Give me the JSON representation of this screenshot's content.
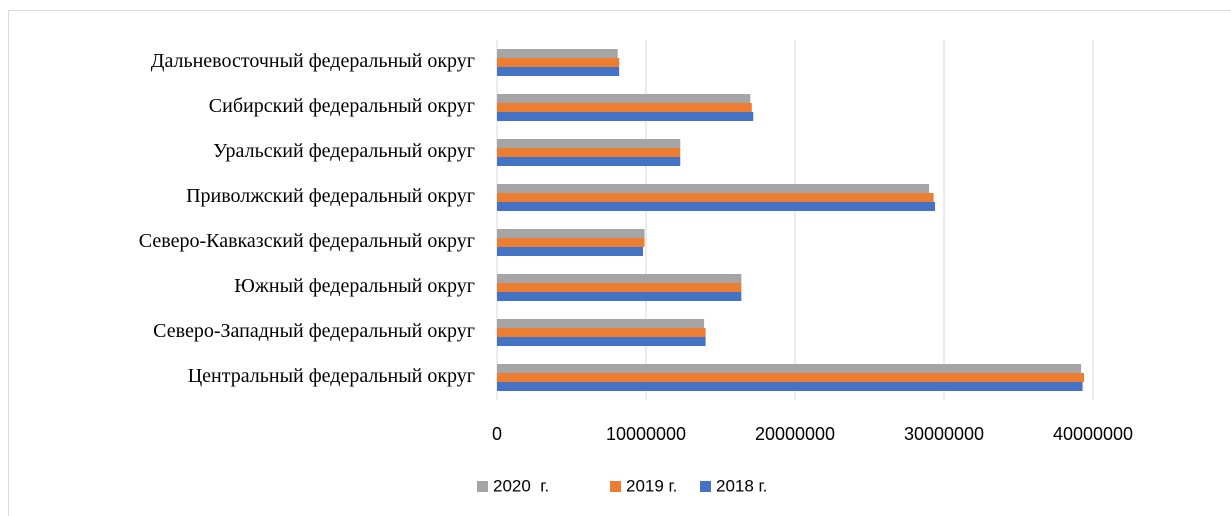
{
  "chart_data": {
    "type": "hbar",
    "categories": [
      "Центральный федеральный округ",
      "Северо-Западный федеральный округ",
      "Южный федеральный округ",
      "Северо-Кавказский федеральный округ",
      "Приволжский федеральный округ",
      "Уральский федеральный округ",
      "Сибирский федеральный округ",
      "Дальневосточный федеральный округ"
    ],
    "series": [
      {
        "name": "2020  г.",
        "color": "#a5a5a5",
        "values": [
          39200000,
          13900000,
          16400000,
          9900000,
          29000000,
          12300000,
          17000000,
          8100000
        ]
      },
      {
        "name": "2019 г.",
        "color": "#ed7d31",
        "values": [
          39400000,
          14000000,
          16400000,
          9900000,
          29300000,
          12300000,
          17100000,
          8200000
        ]
      },
      {
        "name": "2018 г.",
        "color": "#4472c4",
        "values": [
          39300000,
          14000000,
          16400000,
          9800000,
          29400000,
          12300000,
          17200000,
          8200000
        ]
      }
    ],
    "xlim": [
      0,
      40000000
    ],
    "xticks": [
      0,
      10000000,
      20000000,
      30000000,
      40000000
    ],
    "grid": true,
    "legend": "bottom"
  }
}
